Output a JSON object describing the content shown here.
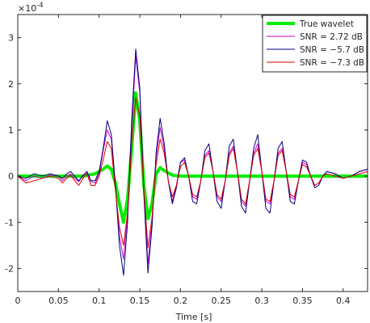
{
  "chart_data": {
    "type": "line",
    "title": "",
    "xlabel": "Time [s]",
    "ylabel": "",
    "y_exponent_label": "×10",
    "y_exponent_power": "-4",
    "xlim": [
      0,
      0.43
    ],
    "ylim": [
      -2.5,
      3.5
    ],
    "x_ticks": [
      0,
      0.05,
      0.1,
      0.15,
      0.2,
      0.25,
      0.3,
      0.35,
      0.4
    ],
    "x_tick_labels": [
      "0",
      "0.05",
      "0.1",
      "0.15",
      "0.2",
      "0.25",
      "0.3",
      "0.35",
      "0.4"
    ],
    "y_ticks": [
      -2,
      -1,
      0,
      1,
      2,
      3
    ],
    "y_tick_labels": [
      "-2",
      "-1",
      "0",
      "1",
      "2",
      "3"
    ],
    "grid": false,
    "legend_position": "top-right",
    "series": [
      {
        "name": "True wavelet",
        "color": "#00ee00",
        "x": [
          0,
          0.02,
          0.04,
          0.06,
          0.08,
          0.095,
          0.105,
          0.11,
          0.115,
          0.12,
          0.125,
          0.13,
          0.135,
          0.14,
          0.145,
          0.15,
          0.155,
          0.16,
          0.165,
          0.17,
          0.175,
          0.18,
          0.19,
          0.2,
          0.25,
          0.3,
          0.35,
          0.4,
          0.43
        ],
        "values": [
          0,
          0,
          0,
          0,
          0,
          0.05,
          0.15,
          0.22,
          0.15,
          -0.15,
          -0.6,
          -1.0,
          -0.5,
          0.6,
          1.8,
          1.2,
          -0.2,
          -0.92,
          -0.6,
          0.05,
          0.18,
          0.12,
          0.02,
          0,
          0,
          0,
          0,
          0,
          0
        ]
      },
      {
        "name": "SNR = 2.72 dB",
        "color": "#cc00cc",
        "x": [
          0,
          0.01,
          0.02,
          0.03,
          0.04,
          0.05,
          0.055,
          0.06,
          0.065,
          0.07,
          0.075,
          0.08,
          0.085,
          0.09,
          0.095,
          0.1,
          0.105,
          0.11,
          0.115,
          0.12,
          0.125,
          0.13,
          0.135,
          0.14,
          0.145,
          0.15,
          0.155,
          0.16,
          0.165,
          0.17,
          0.175,
          0.18,
          0.185,
          0.19,
          0.195,
          0.2,
          0.205,
          0.21,
          0.215,
          0.22,
          0.225,
          0.23,
          0.235,
          0.24,
          0.245,
          0.25,
          0.255,
          0.26,
          0.265,
          0.27,
          0.275,
          0.28,
          0.285,
          0.29,
          0.295,
          0.3,
          0.305,
          0.31,
          0.315,
          0.32,
          0.325,
          0.33,
          0.335,
          0.34,
          0.345,
          0.35,
          0.355,
          0.36,
          0.365,
          0.37,
          0.375,
          0.38,
          0.39,
          0.4,
          0.41,
          0.42,
          0.43
        ],
        "values": [
          0,
          -0.1,
          0.0,
          -0.05,
          0.02,
          0.0,
          -0.1,
          0.0,
          0.05,
          -0.05,
          -0.12,
          0.02,
          0.08,
          -0.12,
          -0.15,
          0.05,
          0.55,
          1.0,
          0.8,
          -0.2,
          -1.3,
          -1.8,
          -0.8,
          1.0,
          2.6,
          1.8,
          -0.3,
          -1.9,
          -1.0,
          0.4,
          1.05,
          0.6,
          -0.1,
          -0.55,
          -0.2,
          0.3,
          0.35,
          0.0,
          -0.45,
          -0.5,
          -0.1,
          0.45,
          0.55,
          0.1,
          -0.45,
          -0.55,
          -0.1,
          0.5,
          0.65,
          0.1,
          -0.55,
          -0.65,
          -0.1,
          0.5,
          0.7,
          0.1,
          -0.55,
          -0.6,
          -0.1,
          0.5,
          0.6,
          0.1,
          -0.45,
          -0.5,
          -0.1,
          0.3,
          0.25,
          0.0,
          -0.2,
          -0.15,
          0.0,
          0.1,
          0.05,
          -0.05,
          0.0,
          0.1,
          0.15
        ]
      },
      {
        "name": "SNR = −5.7 dB",
        "color": "#000080",
        "x": [
          0,
          0.01,
          0.02,
          0.03,
          0.04,
          0.05,
          0.055,
          0.06,
          0.065,
          0.07,
          0.075,
          0.08,
          0.085,
          0.09,
          0.095,
          0.1,
          0.105,
          0.11,
          0.115,
          0.12,
          0.125,
          0.13,
          0.135,
          0.14,
          0.145,
          0.15,
          0.155,
          0.16,
          0.165,
          0.17,
          0.175,
          0.18,
          0.185,
          0.19,
          0.195,
          0.2,
          0.205,
          0.21,
          0.215,
          0.22,
          0.225,
          0.23,
          0.235,
          0.24,
          0.245,
          0.25,
          0.255,
          0.26,
          0.265,
          0.27,
          0.275,
          0.28,
          0.285,
          0.29,
          0.295,
          0.3,
          0.305,
          0.31,
          0.315,
          0.32,
          0.325,
          0.33,
          0.335,
          0.34,
          0.345,
          0.35,
          0.355,
          0.36,
          0.365,
          0.37,
          0.375,
          0.38,
          0.39,
          0.4,
          0.41,
          0.42,
          0.43
        ],
        "values": [
          0,
          -0.05,
          0.05,
          0.0,
          0.05,
          0.0,
          -0.05,
          0.05,
          0.1,
          0.0,
          -0.1,
          0.0,
          0.1,
          -0.1,
          -0.1,
          0.1,
          0.6,
          1.2,
          0.9,
          -0.2,
          -1.5,
          -2.15,
          -1.0,
          1.2,
          2.75,
          1.9,
          -0.4,
          -2.1,
          -1.1,
          0.5,
          1.25,
          0.7,
          -0.1,
          -0.6,
          -0.25,
          0.3,
          0.4,
          0.0,
          -0.55,
          -0.6,
          -0.1,
          0.55,
          0.7,
          0.1,
          -0.55,
          -0.7,
          -0.1,
          0.65,
          0.8,
          0.1,
          -0.65,
          -0.8,
          -0.1,
          0.6,
          0.9,
          0.1,
          -0.7,
          -0.8,
          -0.1,
          0.6,
          0.75,
          0.1,
          -0.55,
          -0.6,
          -0.1,
          0.35,
          0.3,
          0.0,
          -0.25,
          -0.2,
          0.0,
          0.1,
          0.05,
          -0.05,
          0.0,
          0.1,
          0.15
        ]
      },
      {
        "name": "SNR = −7.3 dB",
        "color": "#dd0000",
        "x": [
          0,
          0.01,
          0.02,
          0.03,
          0.04,
          0.05,
          0.055,
          0.06,
          0.065,
          0.07,
          0.075,
          0.08,
          0.085,
          0.09,
          0.095,
          0.1,
          0.105,
          0.11,
          0.115,
          0.12,
          0.125,
          0.13,
          0.135,
          0.14,
          0.145,
          0.15,
          0.155,
          0.16,
          0.165,
          0.17,
          0.175,
          0.18,
          0.185,
          0.19,
          0.195,
          0.2,
          0.205,
          0.21,
          0.215,
          0.22,
          0.225,
          0.23,
          0.235,
          0.24,
          0.245,
          0.25,
          0.255,
          0.26,
          0.265,
          0.27,
          0.275,
          0.28,
          0.285,
          0.29,
          0.295,
          0.3,
          0.305,
          0.31,
          0.315,
          0.32,
          0.325,
          0.33,
          0.335,
          0.34,
          0.345,
          0.35,
          0.355,
          0.36,
          0.365,
          0.37,
          0.375,
          0.38,
          0.39,
          0.4,
          0.41,
          0.42,
          0.43
        ],
        "values": [
          0,
          -0.15,
          -0.1,
          -0.05,
          0.0,
          -0.05,
          -0.15,
          -0.05,
          0.02,
          -0.1,
          -0.2,
          -0.05,
          0.05,
          -0.2,
          -0.2,
          0.0,
          0.35,
          0.75,
          0.6,
          -0.3,
          -1.1,
          -1.5,
          -0.8,
          0.7,
          1.7,
          1.3,
          -0.3,
          -1.55,
          -0.9,
          0.25,
          0.8,
          0.5,
          -0.1,
          -0.45,
          -0.2,
          0.2,
          0.3,
          0.0,
          -0.4,
          -0.45,
          -0.1,
          0.4,
          0.5,
          0.1,
          -0.4,
          -0.5,
          -0.1,
          0.45,
          0.6,
          0.1,
          -0.5,
          -0.6,
          -0.1,
          0.45,
          0.6,
          0.1,
          -0.5,
          -0.55,
          -0.1,
          0.45,
          0.55,
          0.1,
          -0.4,
          -0.45,
          -0.1,
          0.25,
          0.2,
          0.0,
          -0.2,
          -0.15,
          0.0,
          0.05,
          0.0,
          -0.05,
          0.0,
          0.05,
          0.1
        ]
      }
    ]
  }
}
